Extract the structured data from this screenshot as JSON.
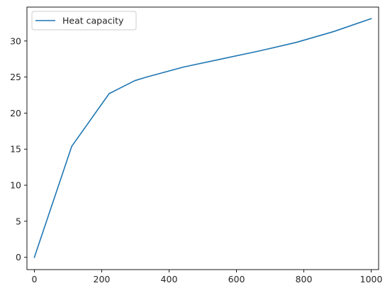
{
  "chart_data": {
    "type": "line",
    "title": "",
    "xlabel": "",
    "ylabel": "",
    "xlim": [
      -22,
      1022
    ],
    "ylim": [
      -1.7,
      34.7
    ],
    "xticks": [
      0,
      200,
      400,
      600,
      800,
      1000
    ],
    "yticks": [
      0,
      5,
      10,
      15,
      20,
      25,
      30
    ],
    "grid": false,
    "legend_position": "upper-left",
    "series": [
      {
        "name": "Heat capacity",
        "color": "#1f77b4",
        "x": [
          0,
          111,
          222,
          298,
          333,
          444,
          555,
          666,
          777,
          888,
          1000
        ],
        "y": [
          0,
          15.4,
          22.7,
          24.5,
          25.0,
          26.4,
          27.5,
          28.6,
          29.8,
          31.3,
          33.1
        ]
      }
    ]
  }
}
